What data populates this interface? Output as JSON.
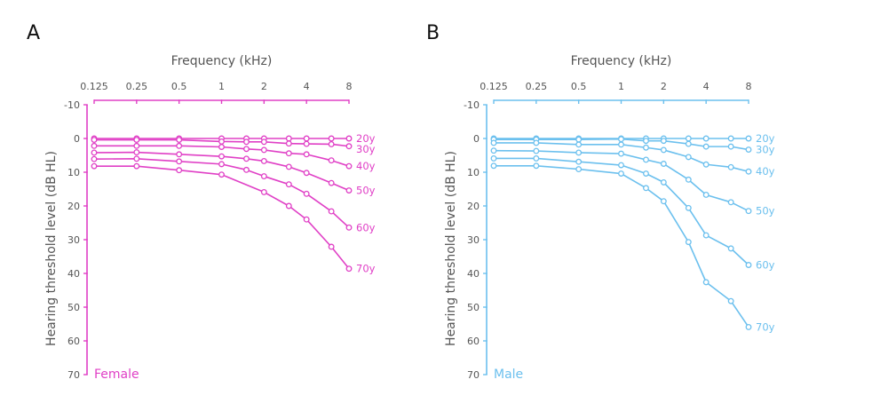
{
  "chart_data": [
    {
      "type": "line",
      "panel": "A",
      "group_label": "Female",
      "color": "#e040c6",
      "xlabel": "Frequency (kHz)",
      "ylabel": "Hearing threshold level (dB HL)",
      "x_scale": "log",
      "x_ticks": [
        "0.125",
        "0.25",
        "0.5",
        "1",
        "2",
        "4",
        "8"
      ],
      "y_ticks": [
        "-10",
        "0",
        "10",
        "20",
        "30",
        "40",
        "50",
        "60",
        "70"
      ],
      "ylim": [
        -10,
        70
      ],
      "y_inverted": true,
      "grid": false,
      "x": [
        0.125,
        0.25,
        0.5,
        1,
        1.5,
        2,
        3,
        4,
        6,
        8
      ],
      "series": [
        {
          "name": "20y",
          "values": [
            0,
            0,
            0,
            0,
            0,
            0,
            0,
            0,
            0,
            0
          ]
        },
        {
          "name": "30y",
          "values": [
            0.4,
            0.4,
            0.4,
            0.9,
            1.0,
            1.0,
            1.5,
            1.6,
            1.7,
            2.3
          ]
        },
        {
          "name": "40y",
          "values": [
            2.2,
            2.2,
            2.2,
            2.5,
            3.1,
            3.4,
            4.4,
            4.7,
            6.5,
            8.2
          ]
        },
        {
          "name": "50y",
          "values": [
            4.2,
            4.1,
            4.7,
            5.3,
            6.0,
            6.7,
            8.4,
            10.2,
            13.2,
            15.4
          ]
        },
        {
          "name": "60y",
          "values": [
            6.1,
            6.0,
            6.8,
            7.6,
            9.3,
            11.2,
            13.6,
            16.4,
            21.6,
            26.4
          ]
        },
        {
          "name": "70y",
          "values": [
            8.2,
            8.2,
            9.4,
            10.7,
            null,
            15.9,
            20.0,
            24.0,
            32.1,
            38.6
          ]
        }
      ]
    },
    {
      "type": "line",
      "panel": "B",
      "group_label": "Male",
      "color": "#6cc0ee",
      "xlabel": "Frequency (kHz)",
      "ylabel": "Hearing threshold level (dB HL)",
      "x_scale": "log",
      "x_ticks": [
        "0.125",
        "0.25",
        "0.5",
        "1",
        "2",
        "4",
        "8"
      ],
      "y_ticks": [
        "-10",
        "0",
        "10",
        "20",
        "30",
        "40",
        "50",
        "60",
        "70"
      ],
      "ylim": [
        -10,
        70
      ],
      "y_inverted": true,
      "grid": false,
      "x": [
        0.125,
        0.25,
        0.5,
        1,
        1.5,
        2,
        3,
        4,
        6,
        8
      ],
      "series": [
        {
          "name": "20y",
          "values": [
            0,
            0,
            0,
            0,
            0,
            0,
            0,
            0,
            0,
            0
          ]
        },
        {
          "name": "30y",
          "values": [
            0.3,
            0.3,
            0.3,
            0.2,
            0.7,
            0.7,
            1.6,
            2.4,
            2.4,
            3.3
          ]
        },
        {
          "name": "40y",
          "values": [
            1.3,
            1.3,
            1.8,
            1.8,
            2.7,
            3.4,
            5.5,
            7.7,
            8.5,
            9.8
          ]
        },
        {
          "name": "50y",
          "values": [
            3.6,
            3.7,
            4.2,
            4.5,
            6.3,
            7.5,
            12.2,
            16.7,
            18.9,
            21.5
          ]
        },
        {
          "name": "60y",
          "values": [
            5.9,
            5.9,
            6.9,
            7.9,
            10.4,
            13.0,
            20.6,
            28.7,
            32.6,
            37.5
          ]
        },
        {
          "name": "70y",
          "values": [
            8.1,
            8.1,
            9.1,
            10.4,
            14.7,
            18.6,
            30.7,
            42.6,
            48.2,
            55.9
          ]
        }
      ]
    }
  ]
}
